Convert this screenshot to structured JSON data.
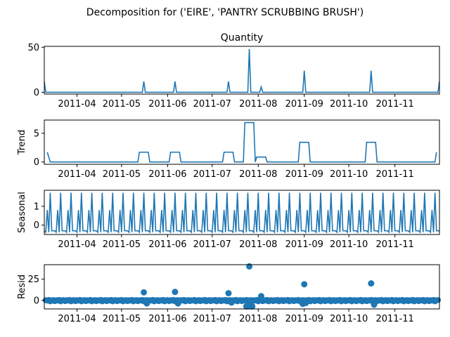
{
  "figure": {
    "suptitle": "Decomposition for ('EIRE', 'PANTRY SCRUBBING BRUSH')"
  },
  "chart_data": [
    {
      "type": "line",
      "title": "Quantity",
      "ylabel": "",
      "xlim": [
        "2011-03-10",
        "2011-12-01"
      ],
      "ylim": [
        -2,
        51
      ],
      "yticks": [
        0,
        50
      ],
      "xticks": [
        "2011-04",
        "2011-05",
        "2011-06",
        "2011-07",
        "2011-08",
        "2011-09",
        "2011-10",
        "2011-11"
      ],
      "x": [
        "2011-03-10",
        "2011-03-11",
        "2011-05-15",
        "2011-05-16",
        "2011-05-17",
        "2011-06-05",
        "2011-06-06",
        "2011-06-07",
        "2011-07-11",
        "2011-07-12",
        "2011-07-13",
        "2011-07-25",
        "2011-07-26",
        "2011-07-27",
        "2011-08-02",
        "2011-08-03",
        "2011-08-04",
        "2011-08-31",
        "2011-09-01",
        "2011-09-02",
        "2011-10-15",
        "2011-10-16",
        "2011-10-17",
        "2011-11-30",
        "2011-12-01"
      ],
      "values": [
        12,
        0,
        0,
        12,
        0,
        0,
        12,
        0,
        0,
        12,
        0,
        0,
        48,
        0,
        0,
        6,
        0,
        0,
        24,
        0,
        0,
        24,
        0,
        0,
        12
      ]
    },
    {
      "type": "line",
      "title": "",
      "ylabel": "Trend",
      "xlim": [
        "2011-03-10",
        "2011-12-01"
      ],
      "ylim": [
        -0.4,
        7.3
      ],
      "yticks": [
        0,
        5
      ],
      "xticks": [
        "2011-04",
        "2011-05",
        "2011-06",
        "2011-07",
        "2011-08",
        "2011-09",
        "2011-10",
        "2011-11"
      ],
      "x": [
        "2011-03-12",
        "2011-03-14",
        "2011-05-12",
        "2011-05-13",
        "2011-05-19",
        "2011-05-20",
        "2011-06-02",
        "2011-06-03",
        "2011-06-09",
        "2011-06-10",
        "2011-07-08",
        "2011-07-09",
        "2011-07-15",
        "2011-07-16",
        "2011-07-22",
        "2011-07-23",
        "2011-07-29",
        "2011-07-30",
        "2011-07-31",
        "2011-08-06",
        "2011-08-07",
        "2011-08-28",
        "2011-08-29",
        "2011-09-04",
        "2011-09-05",
        "2011-10-12",
        "2011-10-13",
        "2011-10-19",
        "2011-10-20",
        "2011-11-28",
        "2011-11-29"
      ],
      "values": [
        1.71,
        0,
        0,
        1.71,
        1.71,
        0,
        0,
        1.71,
        1.71,
        0,
        0,
        1.71,
        1.71,
        0,
        0,
        6.86,
        6.86,
        0,
        0.86,
        0.86,
        0,
        0,
        3.43,
        3.43,
        0,
        0,
        3.43,
        3.43,
        0,
        0,
        1.71
      ]
    },
    {
      "type": "line",
      "title": "",
      "ylabel": "Seasonal",
      "xlim": [
        "2011-03-10",
        "2011-12-01"
      ],
      "ylim": [
        -0.5,
        1.85
      ],
      "yticks": [
        0,
        1
      ],
      "xticks": [
        "2011-04",
        "2011-05",
        "2011-06",
        "2011-07",
        "2011-08",
        "2011-09",
        "2011-10",
        "2011-11"
      ],
      "period_days": 7,
      "start": "2011-03-10",
      "end": "2011-12-01",
      "pattern": [
        -0.3,
        -0.38,
        0.8,
        -0.38,
        1.72,
        -0.3,
        -0.3
      ]
    },
    {
      "type": "scatter",
      "title": "",
      "ylabel": "Resid",
      "xlim": [
        "2011-03-10",
        "2011-12-01"
      ],
      "ylim": [
        -10,
        42
      ],
      "yticks": [
        0,
        25
      ],
      "xticks": [
        "2011-04",
        "2011-05",
        "2011-06",
        "2011-07",
        "2011-08",
        "2011-09",
        "2011-10",
        "2011-11"
      ],
      "baseline_value": 0,
      "points": [
        {
          "x": "2011-05-16",
          "y": 9.5
        },
        {
          "x": "2011-05-18",
          "y": -3.5
        },
        {
          "x": "2011-06-06",
          "y": 10
        },
        {
          "x": "2011-06-08",
          "y": -3.5
        },
        {
          "x": "2011-07-12",
          "y": 8.5
        },
        {
          "x": "2011-07-14",
          "y": -2.5
        },
        {
          "x": "2011-07-24",
          "y": -7
        },
        {
          "x": "2011-07-25",
          "y": -7
        },
        {
          "x": "2011-07-26",
          "y": 40
        },
        {
          "x": "2011-07-27",
          "y": -7
        },
        {
          "x": "2011-07-28",
          "y": -7
        },
        {
          "x": "2011-08-03",
          "y": 5
        },
        {
          "x": "2011-08-31",
          "y": -4
        },
        {
          "x": "2011-09-01",
          "y": 19
        },
        {
          "x": "2011-09-02",
          "y": -3
        },
        {
          "x": "2011-10-16",
          "y": 20
        },
        {
          "x": "2011-10-18",
          "y": -5
        }
      ]
    }
  ]
}
